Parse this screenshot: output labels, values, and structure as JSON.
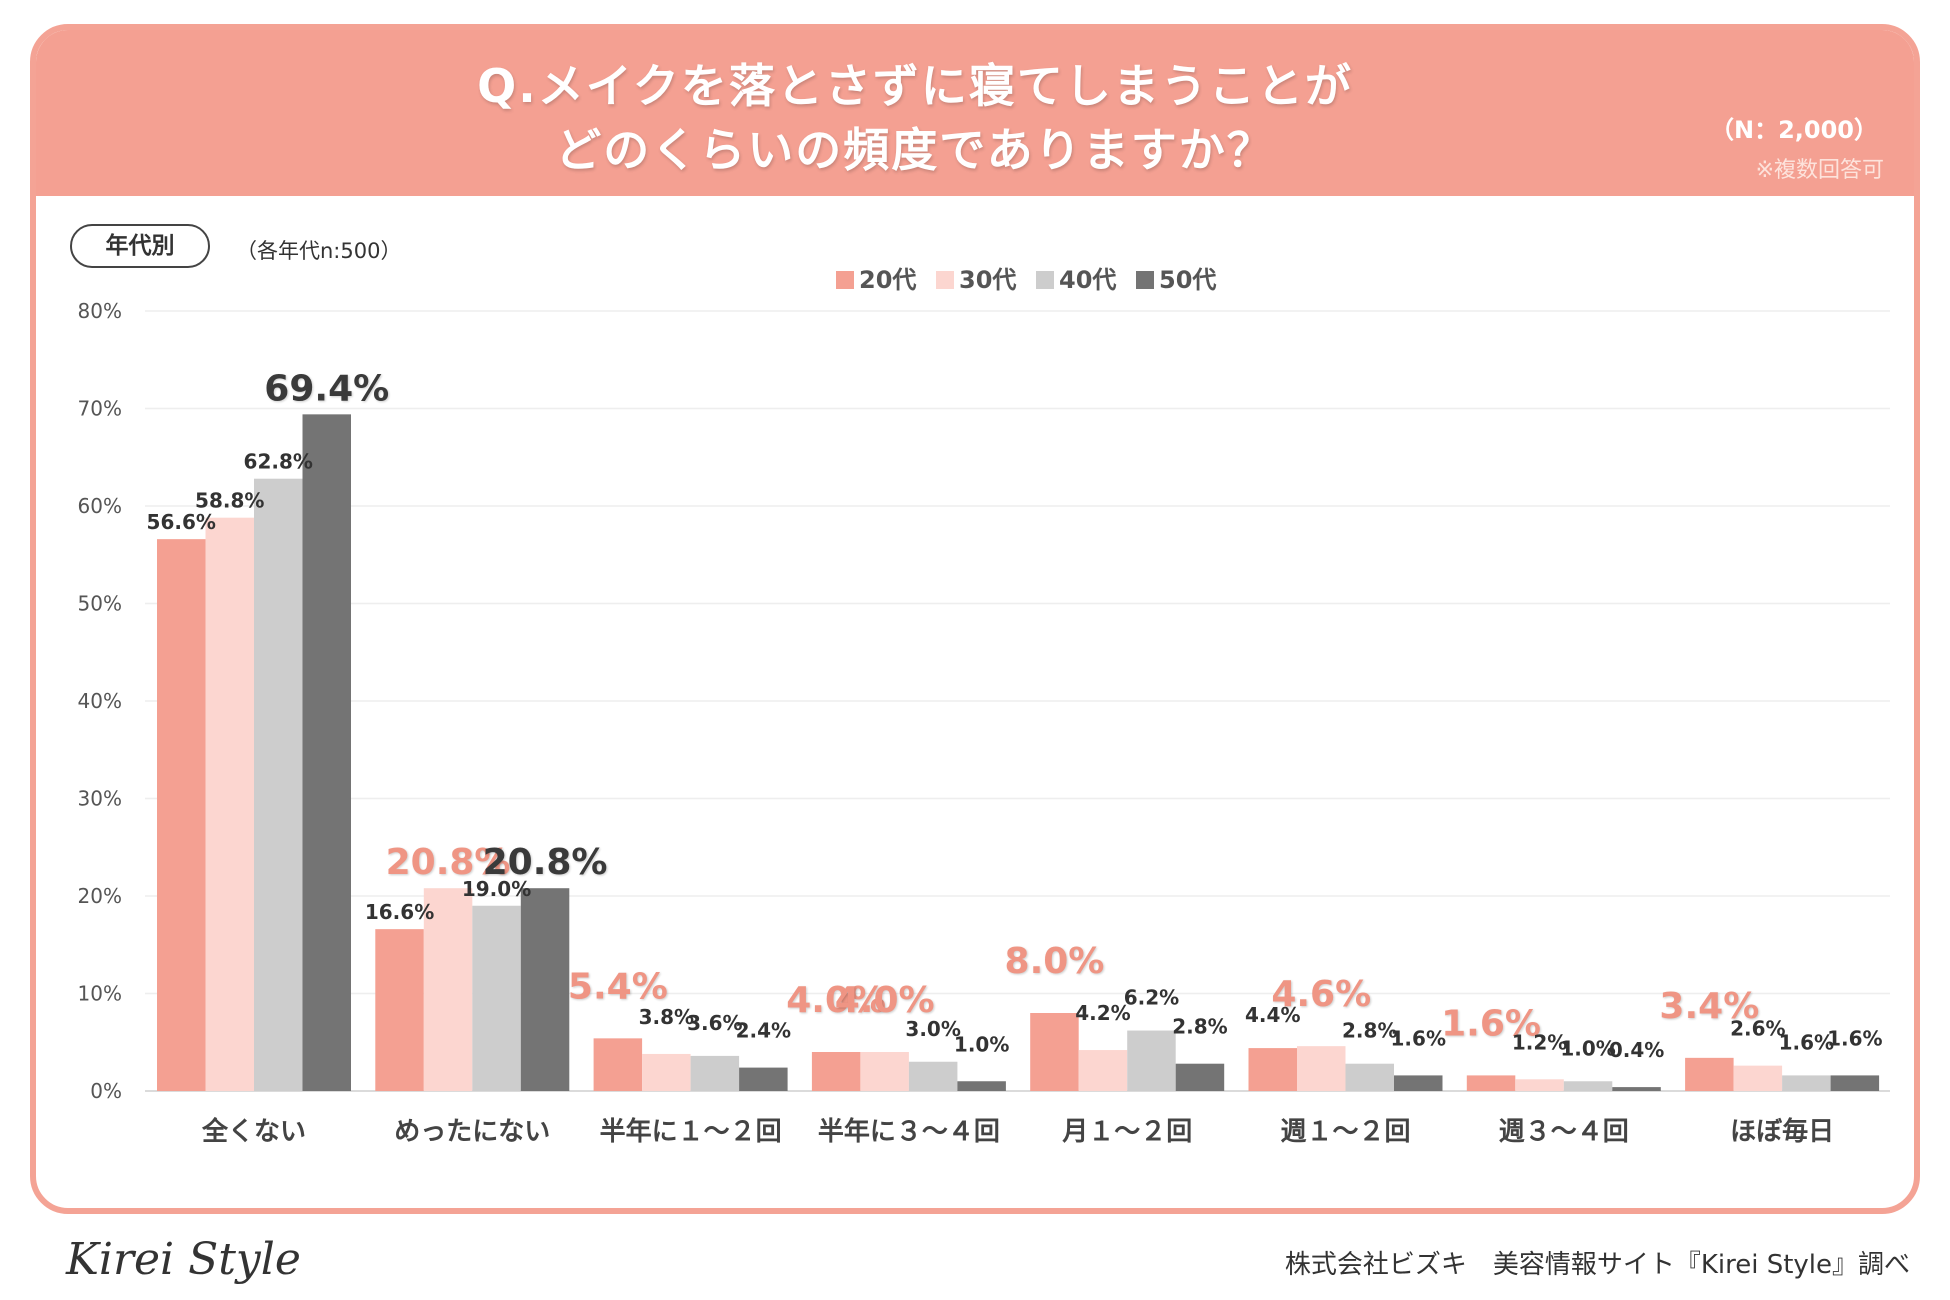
{
  "header": {
    "title_line1": "Q.メイクを落とさずに寝てしまうことが",
    "title_line2": "どのくらいの頻度でありますか？",
    "n_note": "（N：2,000）",
    "multi_note": "※複数回答可"
  },
  "segment": {
    "badge": "年代別",
    "note": "（各年代n:500）"
  },
  "footer": {
    "logo": "Kirei Style",
    "credit": "株式会社ビズキ　美容情報サイト『Kirei Style』調べ"
  },
  "colors": {
    "20s": "#f4a092",
    "30s": "#fcd6d0",
    "40s": "#cdcdcd",
    "50s": "#747474",
    "highlight_text": "#ef9584",
    "dark_text": "#333333"
  },
  "chart_data": {
    "type": "bar",
    "ylim": [
      0,
      80
    ],
    "yticks": [
      "0%",
      "10%",
      "20%",
      "30%",
      "40%",
      "50%",
      "60%",
      "70%",
      "80%"
    ],
    "categories": [
      "全くない",
      "めったにない",
      "半年に１～２回",
      "半年に３～４回",
      "月１～２回",
      "週１～２回",
      "週３～４回",
      "ほぼ毎日"
    ],
    "series": [
      {
        "name": "20代",
        "values": [
          56.6,
          16.6,
          5.4,
          4.0,
          8.0,
          4.4,
          1.6,
          3.4
        ],
        "labels": [
          "56.6%",
          "16.6%",
          "5.4%",
          "4.0%",
          "8.0%",
          "4.4%",
          "1.6%",
          "3.4%"
        ]
      },
      {
        "name": "30代",
        "values": [
          58.8,
          20.8,
          3.8,
          4.0,
          4.2,
          4.6,
          1.2,
          2.6
        ],
        "labels": [
          "58.8%",
          "20.8%",
          "3.8%",
          "4.0%",
          "4.2%",
          "4.6%",
          "1.2%",
          "2.6%"
        ]
      },
      {
        "name": "40代",
        "values": [
          62.8,
          19.0,
          3.6,
          3.0,
          6.2,
          2.8,
          1.0,
          1.6
        ],
        "labels": [
          "62.8%",
          "19.0%",
          "3.6%",
          "3.0%",
          "6.2%",
          "2.8%",
          "1.0%",
          "1.6%"
        ]
      },
      {
        "name": "50代",
        "values": [
          69.4,
          20.8,
          2.4,
          1.0,
          2.8,
          1.6,
          0.4,
          1.6
        ],
        "labels": [
          "69.4%",
          "20.8%",
          "2.4%",
          "1.0%",
          "2.8%",
          "1.6%",
          "0.4%",
          "1.6%"
        ]
      }
    ],
    "highlighted_labels": [
      {
        "category": "全くない",
        "series": "50代"
      },
      {
        "category": "めったにない",
        "series": "30代"
      },
      {
        "category": "めったにない",
        "series": "50代"
      },
      {
        "category": "半年に１～２回",
        "series": "20代"
      },
      {
        "category": "半年に３～４回",
        "series": "20代"
      },
      {
        "category": "半年に３～４回",
        "series": "30代"
      },
      {
        "category": "月１～２回",
        "series": "20代"
      },
      {
        "category": "週１～２回",
        "series": "30代"
      },
      {
        "category": "週３～４回",
        "series": "20代"
      },
      {
        "category": "ほぼ毎日",
        "series": "20代"
      }
    ],
    "legend": [
      "20代",
      "30代",
      "40代",
      "50代"
    ],
    "legend_position": "top-center",
    "grid": true
  }
}
